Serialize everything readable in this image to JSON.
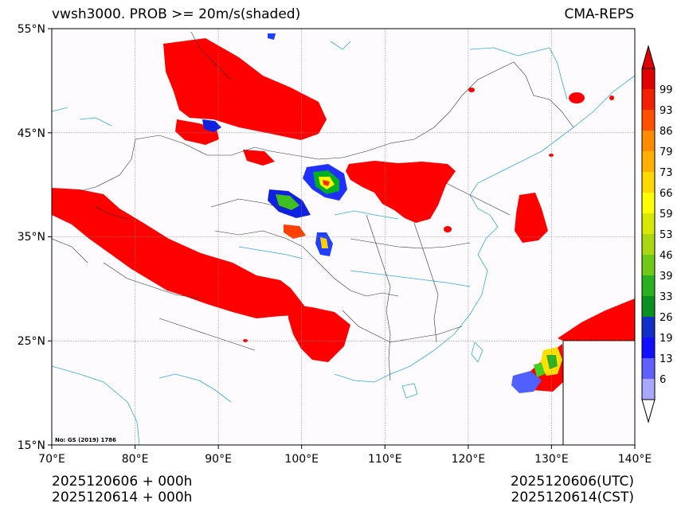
{
  "title": {
    "left": "vwsh3000. PROB >= 20m/s(shaded)",
    "right": "CMA-REPS"
  },
  "map": {
    "lon_range": [
      70,
      140
    ],
    "lat_range": [
      15,
      55
    ],
    "lon_ticks": [
      "70°E",
      "80°E",
      "90°E",
      "100°E",
      "110°E",
      "120°E",
      "130°E",
      "140°E"
    ],
    "lat_ticks": [
      "15°N",
      "25°N",
      "35°N",
      "45°N",
      "55°N"
    ],
    "note": "No: GS (2019) 1786",
    "colors": {
      "high_prob": "#ff0000",
      "coast": "#33aadd",
      "border": "#333333",
      "grid": "#888888"
    }
  },
  "colorbar": {
    "labels": [
      "6",
      "13",
      "19",
      "26",
      "33",
      "39",
      "46",
      "53",
      "59",
      "66",
      "73",
      "79",
      "86",
      "93",
      "99"
    ],
    "colors": [
      "#a8a8ff",
      "#6060ff",
      "#1010ff",
      "#1030c8",
      "#0a9020",
      "#28b020",
      "#70c818",
      "#a8d810",
      "#d8e800",
      "#ffff00",
      "#ffd800",
      "#ffb000",
      "#ff8c00",
      "#ff5000",
      "#f02000",
      "#e00000"
    ]
  },
  "footer": {
    "left_line1": "2025120606  +  000h",
    "left_line2": "2025120614  +  000h",
    "right_line1": "2025120606(UTC)",
    "right_line2": "2025120614(CST)"
  }
}
